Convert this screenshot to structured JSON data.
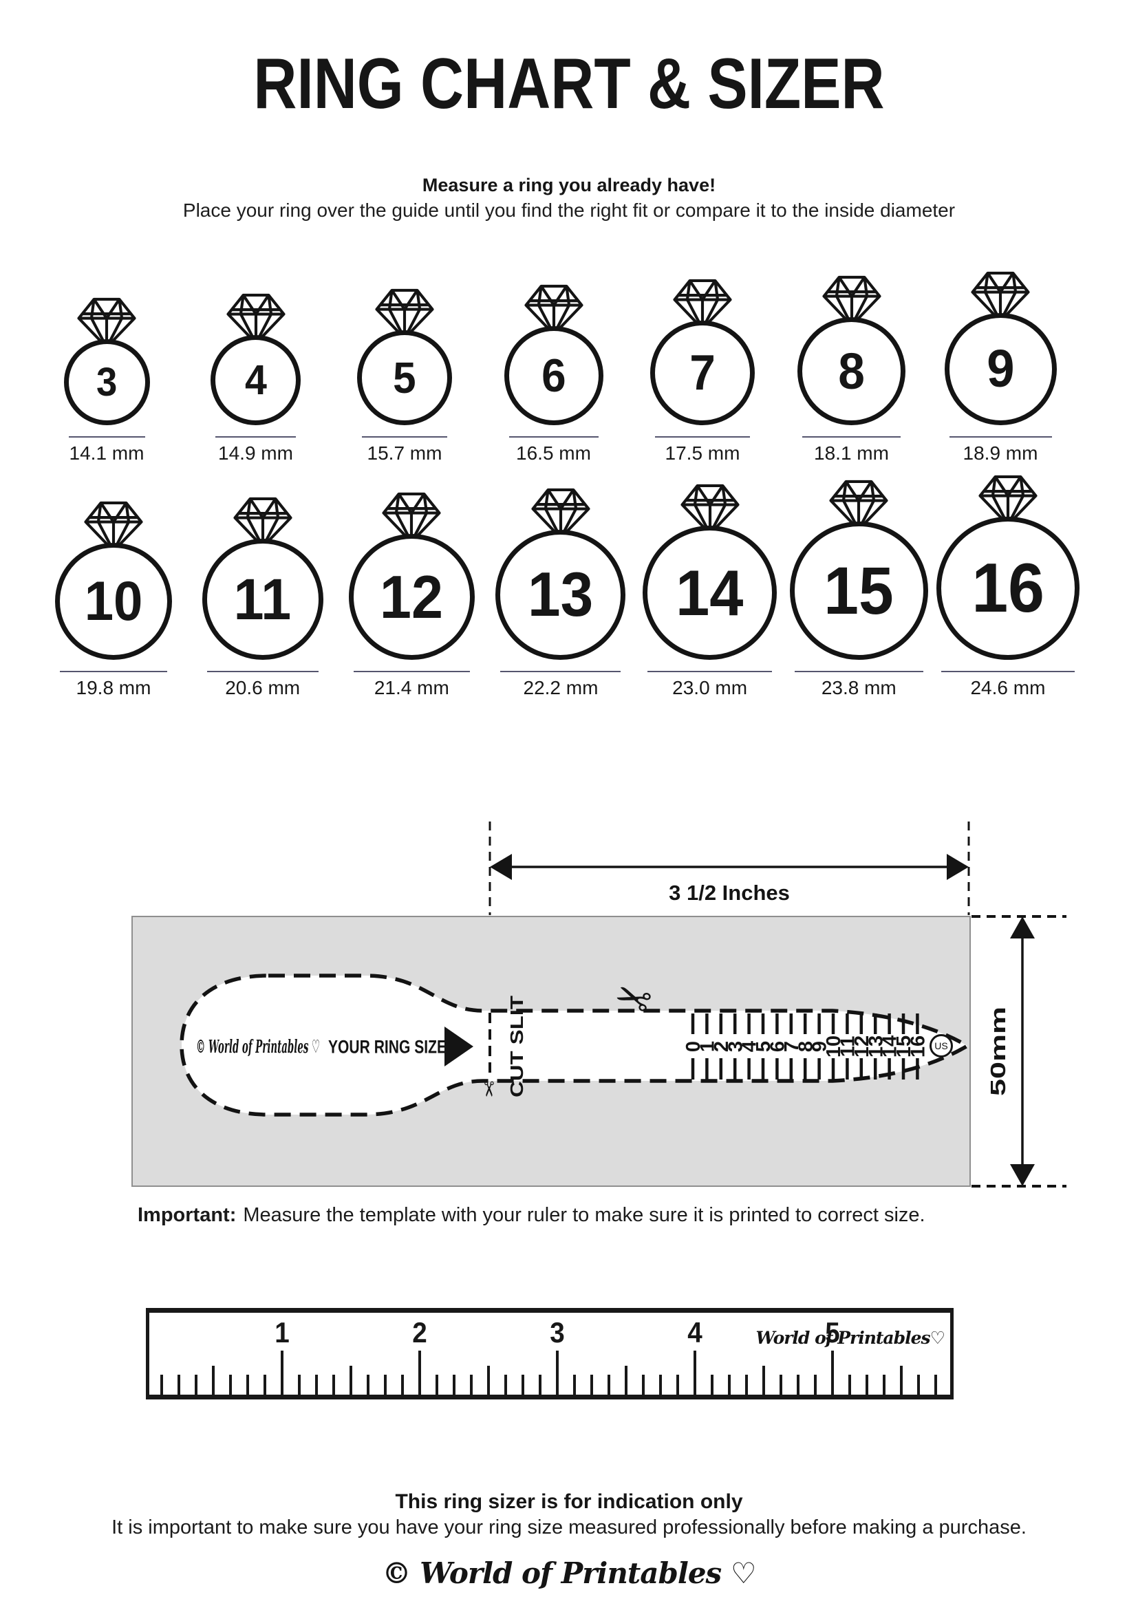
{
  "title": "RING CHART & SIZER",
  "header": {
    "subtitle_bold": "Measure a ring you already have!",
    "subtitle": "Place your ring over the guide until you find the right fit or compare it to the inside diameter"
  },
  "rings": {
    "row1": [
      {
        "size": "3",
        "mm": 14.1,
        "label": "14.1 mm"
      },
      {
        "size": "4",
        "mm": 14.9,
        "label": "14.9 mm"
      },
      {
        "size": "5",
        "mm": 15.7,
        "label": "15.7 mm"
      },
      {
        "size": "6",
        "mm": 16.5,
        "label": "16.5 mm"
      },
      {
        "size": "7",
        "mm": 17.5,
        "label": "17.5 mm"
      },
      {
        "size": "8",
        "mm": 18.1,
        "label": "18.1 mm"
      },
      {
        "size": "9",
        "mm": 18.9,
        "label": "18.9 mm"
      }
    ],
    "row2": [
      {
        "size": "10",
        "mm": 19.8,
        "label": "19.8 mm"
      },
      {
        "size": "11",
        "mm": 20.6,
        "label": "20.6 mm"
      },
      {
        "size": "12",
        "mm": 21.4,
        "label": "21.4 mm"
      },
      {
        "size": "13",
        "mm": 22.2,
        "label": "22.2 mm"
      },
      {
        "size": "14",
        "mm": 23.0,
        "label": "23.0 mm"
      },
      {
        "size": "15",
        "mm": 23.8,
        "label": "23.8 mm"
      },
      {
        "size": "16",
        "mm": 24.6,
        "label": "24.6 mm"
      }
    ]
  },
  "sizer": {
    "width_label": "3 1/2 Inches",
    "height_label": "50mm",
    "brand": "© World of Printables ♡",
    "your_ring_size": "YOUR RING SIZE",
    "cut_slit": "CUT SLIT",
    "us_label": "US",
    "strip_numbers": [
      "0",
      "1",
      "2",
      "3",
      "4",
      "5",
      "6",
      "7",
      "8",
      "9",
      "10",
      "11",
      "12",
      "13",
      "14",
      "15",
      "16"
    ]
  },
  "important": {
    "bold": "Important:",
    "text": "Measure the template with your ruler to make sure it is printed to correct size."
  },
  "ruler": {
    "numbers": [
      "1",
      "2",
      "3",
      "4",
      "5"
    ],
    "brand": "World of Printables♡"
  },
  "footer": {
    "bold": "This ring sizer is for indication only",
    "text": "It is important to make sure you have your ring size measured professionally before making a purchase.",
    "brand": "© World of Printables ♡"
  },
  "colors": {
    "ink": "#161616",
    "panel_gray": "#dcdcdc",
    "panel_border": "#8f8f8f",
    "underline": "#55556e"
  }
}
